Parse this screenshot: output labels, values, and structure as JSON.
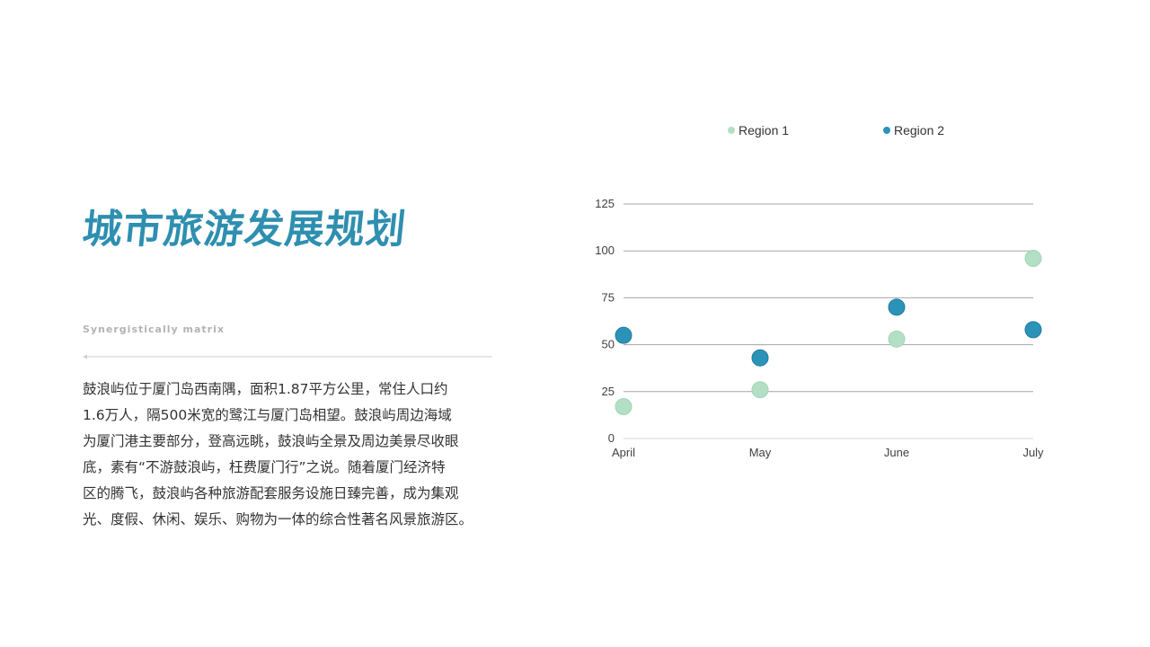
{
  "slide": {
    "title": "城市旅游发展规划",
    "subtitle": "Synergistically matrix",
    "paragraph_lines": [
      "鼓浪屿位于厦门岛西南隅，面积1.87平方公里，常住人口约",
      "1.6万人，隔500米宽的鹭江与厦门岛相望。鼓浪屿周边海域",
      "为厦门港主要部分，登高远眺，鼓浪屿全景及周边美景尽收眼",
      "底，素有“不游鼓浪屿，枉费厦门行”之说。随着厦门经济特",
      "区的腾飞，鼓浪屿各种旅游配套服务设施日臻完善，成为集观",
      "光、度假、休闲、娱乐、购物为一体的综合性著名风景旅游区。"
    ]
  },
  "colors": {
    "title": "#2e8fb0",
    "region1": "#b3dfc4",
    "region2": "#2b93b8",
    "gridline": "#a6a6a6",
    "axis_text": "#404040"
  },
  "chart_data": {
    "type": "scatter",
    "categories": [
      "April",
      "May",
      "June",
      "July"
    ],
    "series": [
      {
        "name": "Region 1",
        "values": [
          17,
          26,
          53,
          96
        ]
      },
      {
        "name": "Region 2",
        "values": [
          55,
          43,
          70,
          58
        ]
      }
    ],
    "ylim": [
      0,
      125
    ],
    "yticks": [
      0,
      25,
      50,
      75,
      100,
      125
    ],
    "grid": true,
    "legend_position": "top",
    "title": "",
    "xlabel": "",
    "ylabel": ""
  }
}
